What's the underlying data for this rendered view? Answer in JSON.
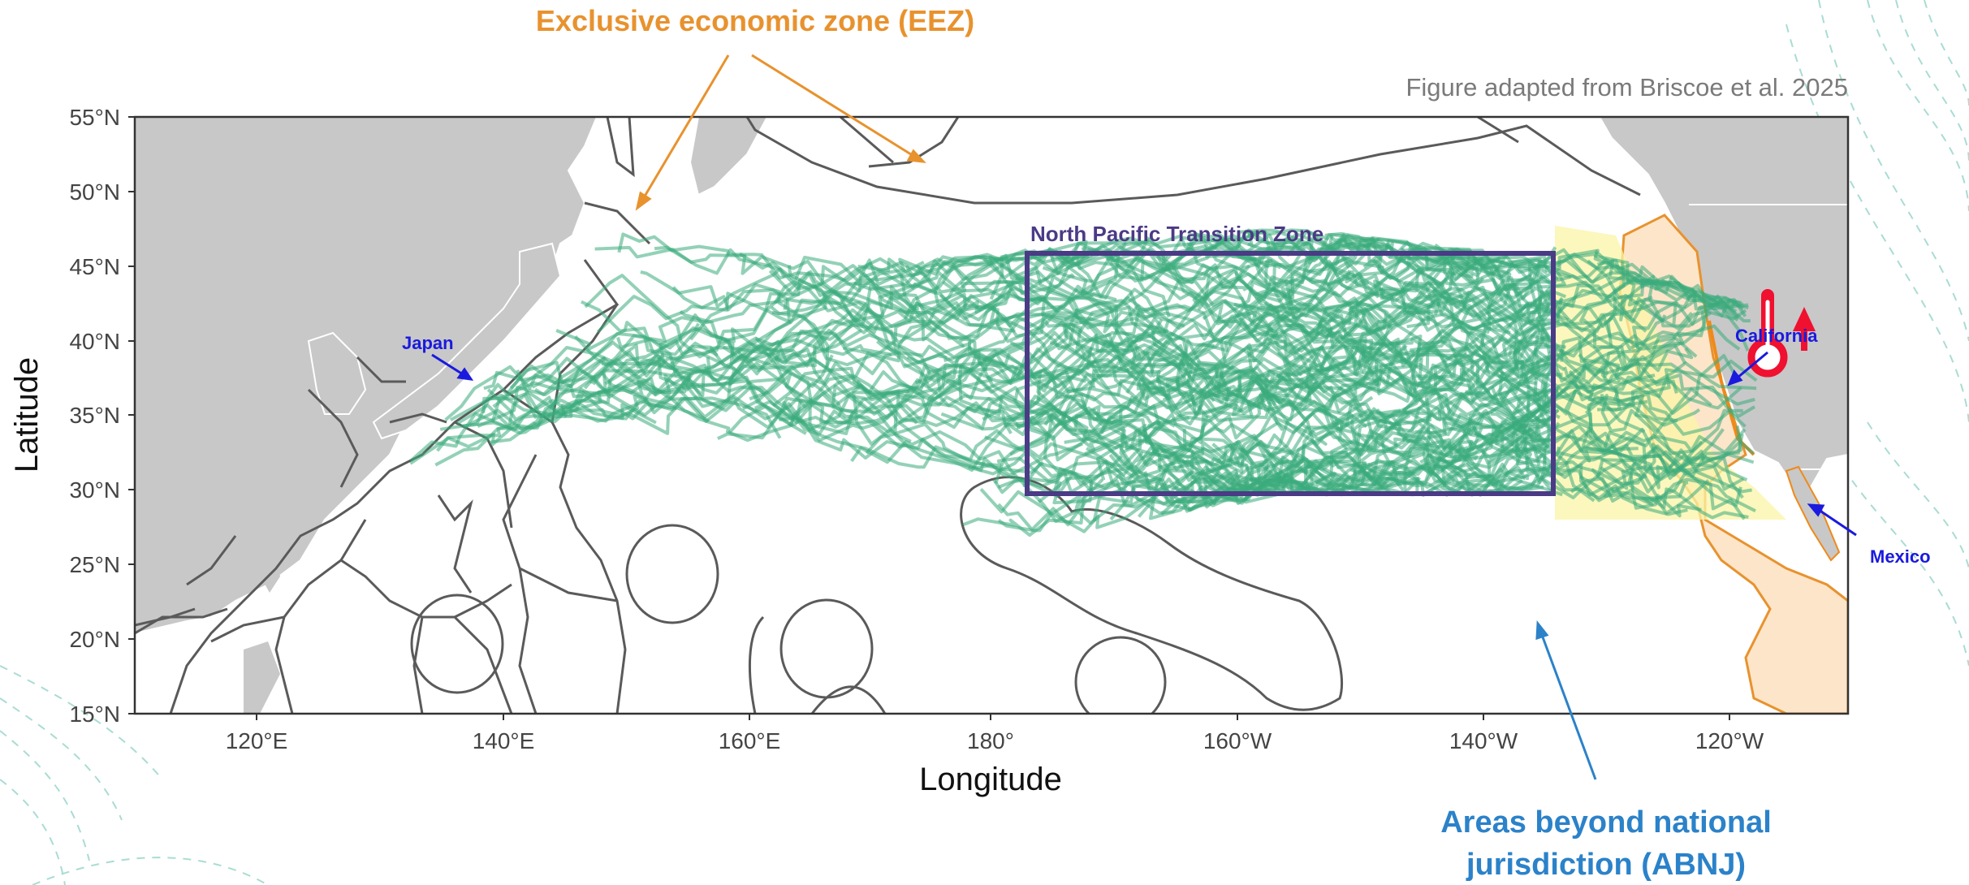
{
  "annotations": {
    "eez_label": "Exclusive economic zone (EEZ)",
    "credit": "Figure adapted from Briscoe et al. 2025",
    "ntz_label": "North Pacific Transition Zone",
    "abnj_line1": "Areas beyond national",
    "abnj_line2": "jurisdiction (ABNJ)",
    "japan": "Japan",
    "california": "California",
    "mexico": "Mexico"
  },
  "axes": {
    "xlabel": "Longitude",
    "ylabel": "Latitude",
    "x_ticks": [
      "120°E",
      "140°E",
      "160°E",
      "180°",
      "160°W",
      "140°W",
      "120°W"
    ],
    "y_ticks": [
      "55°N",
      "50°N",
      "45°N",
      "40°N",
      "35°N",
      "30°N",
      "25°N",
      "20°N",
      "15°N"
    ]
  },
  "colors": {
    "eez_orange": "#e8922e",
    "ntz_purple": "#4b3a86",
    "tracks_green": "#3aab7b",
    "abnj_blue": "#2b82c9",
    "place_blue": "#1a1adf",
    "land_grey": "#c8c8c8",
    "warming_red": "#f0102f"
  },
  "icons": [
    "thermometer-icon",
    "warming-arrow-icon"
  ]
}
